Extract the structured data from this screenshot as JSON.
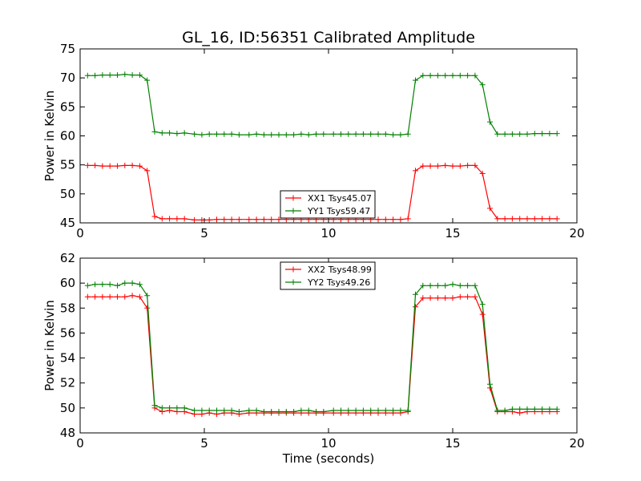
{
  "figure": {
    "title": "GL_16, ID:56351 Calibrated Amplitude"
  },
  "chart_data": [
    {
      "type": "line",
      "title": "GL_16, ID:56351 Calibrated Amplitude",
      "xlabel": "",
      "ylabel": "Power in Kelvin",
      "xlim": [
        0,
        20
      ],
      "ylim": [
        45,
        75
      ],
      "xticks": [
        0,
        5,
        10,
        15,
        20
      ],
      "yticks": [
        45,
        50,
        55,
        60,
        65,
        70,
        75
      ],
      "grid": false,
      "legend": "bottom-center",
      "x": [
        0.3,
        0.6,
        0.9,
        1.2,
        1.5,
        1.8,
        2.1,
        2.4,
        2.7,
        3.0,
        3.3,
        3.6,
        3.9,
        4.2,
        4.6,
        4.9,
        5.2,
        5.5,
        5.8,
        6.1,
        6.4,
        6.8,
        7.1,
        7.4,
        7.7,
        8.0,
        8.3,
        8.6,
        8.9,
        9.2,
        9.5,
        9.8,
        10.2,
        10.5,
        10.8,
        11.1,
        11.4,
        11.7,
        12.0,
        12.3,
        12.6,
        12.9,
        13.2,
        13.5,
        13.8,
        14.1,
        14.4,
        14.7,
        15.0,
        15.3,
        15.6,
        15.9,
        16.2,
        16.5,
        16.8,
        17.1,
        17.4,
        17.7,
        18.0,
        18.3,
        18.6,
        18.9,
        19.2
      ],
      "series": [
        {
          "name": "XX1 Tsys45.07",
          "color": "#ff0000",
          "values": [
            54.9,
            54.9,
            54.8,
            54.8,
            54.8,
            54.9,
            54.9,
            54.8,
            54.0,
            46.1,
            45.7,
            45.7,
            45.7,
            45.7,
            45.5,
            45.5,
            45.5,
            45.6,
            45.6,
            45.6,
            45.6,
            45.6,
            45.6,
            45.6,
            45.6,
            45.6,
            45.6,
            45.6,
            45.6,
            45.6,
            45.6,
            45.6,
            45.6,
            45.6,
            45.6,
            45.6,
            45.6,
            45.6,
            45.6,
            45.6,
            45.6,
            45.6,
            45.7,
            54.0,
            54.8,
            54.8,
            54.8,
            54.9,
            54.8,
            54.8,
            54.9,
            54.9,
            53.5,
            47.5,
            45.7,
            45.7,
            45.7,
            45.7,
            45.7,
            45.7,
            45.7,
            45.7,
            45.7
          ]
        },
        {
          "name": "YY1 Tsys59.47",
          "color": "#008000",
          "values": [
            70.4,
            70.4,
            70.5,
            70.5,
            70.5,
            70.6,
            70.5,
            70.5,
            69.6,
            60.7,
            60.5,
            60.5,
            60.4,
            60.5,
            60.3,
            60.2,
            60.3,
            60.3,
            60.3,
            60.3,
            60.2,
            60.2,
            60.3,
            60.2,
            60.2,
            60.2,
            60.2,
            60.2,
            60.3,
            60.2,
            60.3,
            60.3,
            60.3,
            60.3,
            60.3,
            60.3,
            60.3,
            60.3,
            60.3,
            60.3,
            60.2,
            60.2,
            60.3,
            69.6,
            70.4,
            70.4,
            70.4,
            70.4,
            70.4,
            70.4,
            70.4,
            70.4,
            68.8,
            62.4,
            60.3,
            60.3,
            60.3,
            60.3,
            60.3,
            60.4,
            60.4,
            60.4,
            60.4
          ]
        }
      ]
    },
    {
      "type": "line",
      "title": "",
      "xlabel": "Time (seconds)",
      "ylabel": "Power in Kelvin",
      "xlim": [
        0,
        20
      ],
      "ylim": [
        48,
        62
      ],
      "xticks": [
        0,
        5,
        10,
        15,
        20
      ],
      "yticks": [
        48,
        50,
        52,
        54,
        56,
        58,
        60,
        62
      ],
      "grid": false,
      "legend": "top-center",
      "x": [
        0.3,
        0.6,
        0.9,
        1.2,
        1.5,
        1.8,
        2.1,
        2.4,
        2.7,
        3.0,
        3.3,
        3.6,
        3.9,
        4.2,
        4.6,
        4.9,
        5.2,
        5.5,
        5.8,
        6.1,
        6.4,
        6.8,
        7.1,
        7.4,
        7.7,
        8.0,
        8.3,
        8.6,
        8.9,
        9.2,
        9.5,
        9.8,
        10.2,
        10.5,
        10.8,
        11.1,
        11.4,
        11.7,
        12.0,
        12.3,
        12.6,
        12.9,
        13.2,
        13.5,
        13.8,
        14.1,
        14.4,
        14.7,
        15.0,
        15.3,
        15.6,
        15.9,
        16.2,
        16.5,
        16.8,
        17.1,
        17.4,
        17.7,
        18.0,
        18.3,
        18.6,
        18.9,
        19.2
      ],
      "series": [
        {
          "name": "XX2 Tsys48.99",
          "color": "#ff0000",
          "values": [
            58.9,
            58.9,
            58.9,
            58.9,
            58.9,
            58.9,
            59.0,
            58.9,
            58.0,
            50.0,
            49.7,
            49.8,
            49.7,
            49.7,
            49.5,
            49.5,
            49.6,
            49.5,
            49.6,
            49.6,
            49.5,
            49.6,
            49.6,
            49.6,
            49.6,
            49.6,
            49.6,
            49.6,
            49.6,
            49.6,
            49.6,
            49.6,
            49.6,
            49.6,
            49.6,
            49.6,
            49.6,
            49.6,
            49.6,
            49.6,
            49.6,
            49.6,
            49.7,
            58.1,
            58.8,
            58.8,
            58.8,
            58.8,
            58.8,
            58.9,
            58.9,
            58.9,
            57.5,
            51.6,
            49.7,
            49.7,
            49.7,
            49.6,
            49.7,
            49.7,
            49.7,
            49.7,
            49.7
          ]
        },
        {
          "name": "YY2 Tsys49.26",
          "color": "#008000",
          "values": [
            59.8,
            59.9,
            59.9,
            59.9,
            59.8,
            60.0,
            60.0,
            59.9,
            59.0,
            50.2,
            50.0,
            50.0,
            50.0,
            50.0,
            49.8,
            49.8,
            49.8,
            49.8,
            49.8,
            49.8,
            49.7,
            49.8,
            49.8,
            49.7,
            49.7,
            49.7,
            49.7,
            49.7,
            49.8,
            49.8,
            49.7,
            49.7,
            49.8,
            49.8,
            49.8,
            49.8,
            49.8,
            49.8,
            49.8,
            49.8,
            49.8,
            49.8,
            49.8,
            59.1,
            59.8,
            59.8,
            59.8,
            59.8,
            59.9,
            59.8,
            59.8,
            59.8,
            58.3,
            51.9,
            49.8,
            49.8,
            49.9,
            49.9,
            49.9,
            49.9,
            49.9,
            49.9,
            49.9
          ]
        }
      ]
    }
  ]
}
